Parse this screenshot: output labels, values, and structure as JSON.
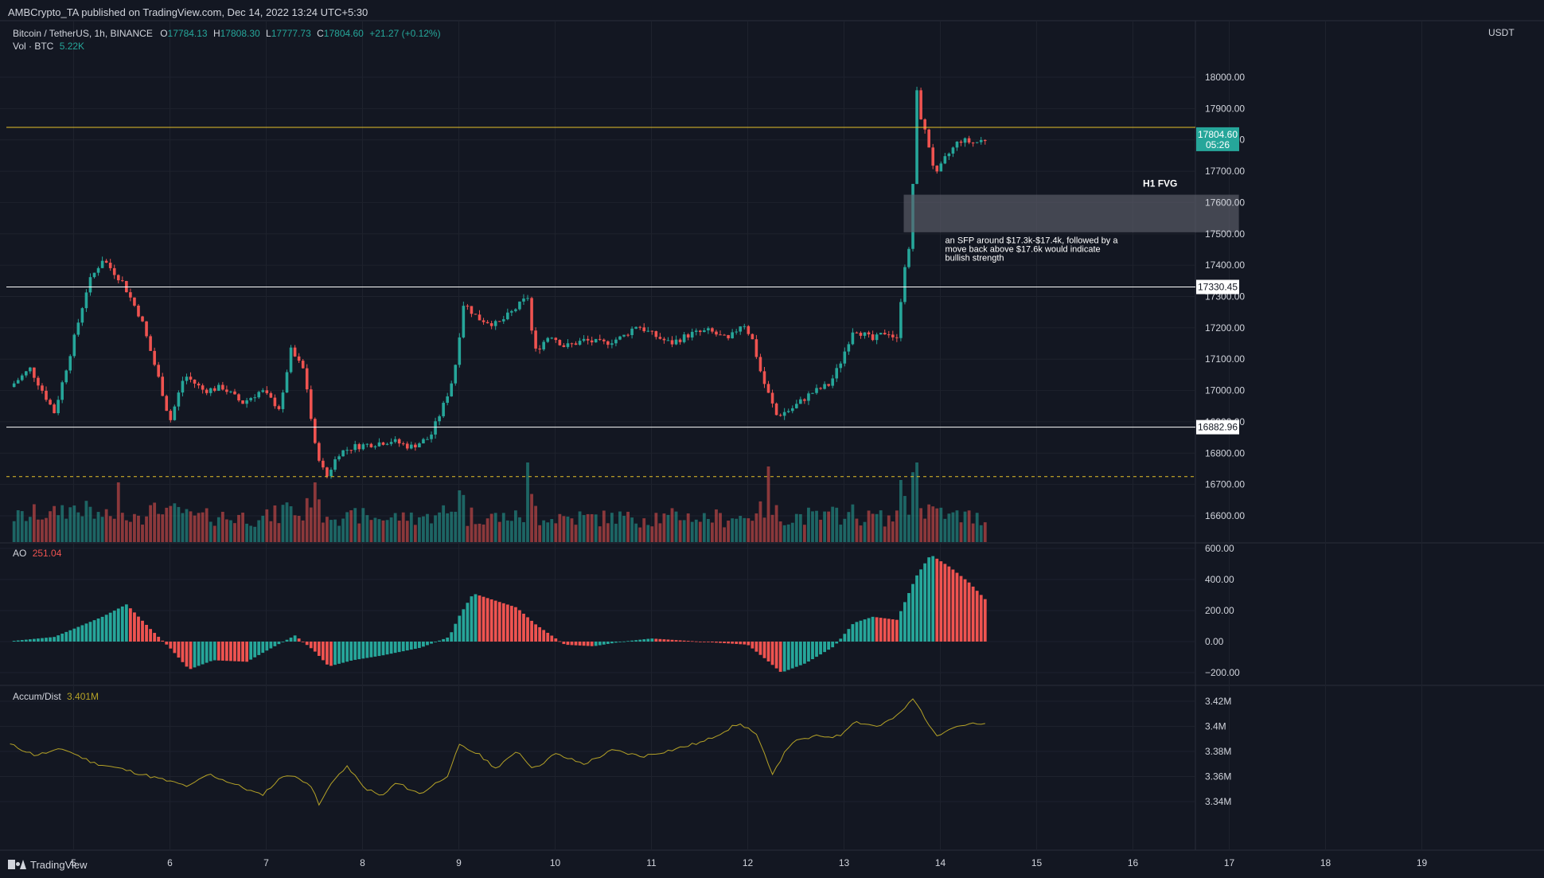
{
  "header": {
    "publisher": "AMBCrypto_TA published on TradingView.com, Dec 14, 2022 13:24 UTC+5:30",
    "symbol": "Bitcoin / TetherUS, 1h, BINANCE",
    "o_label": "O",
    "o": "17784.13",
    "h_label": "H",
    "h": "17808.30",
    "l_label": "L",
    "l": "17777.73",
    "c_label": "C",
    "c": "17804.60",
    "change": "+21.27 (+0.12%)",
    "vol_label": "Vol · BTC",
    "vol": "5.22K",
    "currency": "USDT"
  },
  "colors": {
    "background": "#131722",
    "up": "#26a69a",
    "down": "#ef5350",
    "resistance": "#e6c229",
    "support": "#ffffff",
    "fvg": "#5d606b",
    "ad_line": "#b5a227"
  },
  "footer": {
    "brand": "TradingView",
    "logo": "tradingview-logo-icon"
  },
  "chart_data": [
    {
      "type": "candlestick",
      "name": "Bitcoin / TetherUS, 1h, BINANCE",
      "x_ticks": [
        "5",
        "6",
        "7",
        "8",
        "9",
        "10",
        "11",
        "12",
        "13",
        "14",
        "15",
        "16",
        "17",
        "18",
        "19"
      ],
      "y_ticks": [
        16600,
        16700,
        16800,
        16900,
        17000,
        17100,
        17200,
        17300,
        17400,
        17500,
        17600,
        17700,
        17800,
        17900,
        18000
      ],
      "ylim": [
        16550,
        18100
      ],
      "grid": true,
      "last_price": {
        "value": "17804.60",
        "countdown": "05:26"
      },
      "levels": [
        {
          "kind": "resistance",
          "value": 17840
        },
        {
          "kind": "support",
          "value": 17330.45,
          "label": "17330.45"
        },
        {
          "kind": "support",
          "value": 16882.96,
          "label": "16882.96"
        },
        {
          "kind": "dashed",
          "value": 16725
        }
      ],
      "fvg_zone": {
        "label": "H1 FVG",
        "low": 17505,
        "high": 17625,
        "x_start": 13.62,
        "x_end": 17.1
      },
      "annotation": {
        "lines": [
          "an SFP around $17.3k-$17.4k, followed by a",
          "move back above $17.6k would indicate",
          "bullish strength"
        ],
        "x": 14.05,
        "y": 17470
      },
      "anchors": [
        [
          4.3,
          17000
        ],
        [
          4.55,
          17070
        ],
        [
          4.8,
          16930
        ],
        [
          5.0,
          17160
        ],
        [
          5.15,
          17340
        ],
        [
          5.3,
          17420
        ],
        [
          5.5,
          17350
        ],
        [
          5.7,
          17230
        ],
        [
          5.9,
          17020
        ],
        [
          6.0,
          16900
        ],
        [
          6.15,
          17050
        ],
        [
          6.35,
          17000
        ],
        [
          6.55,
          17010
        ],
        [
          6.75,
          16960
        ],
        [
          6.95,
          17000
        ],
        [
          7.15,
          16940
        ],
        [
          7.25,
          17130
        ],
        [
          7.4,
          17060
        ],
        [
          7.5,
          16830
        ],
        [
          7.62,
          16720
        ],
        [
          7.75,
          16800
        ],
        [
          7.9,
          16820
        ],
        [
          8.1,
          16830
        ],
        [
          8.3,
          16840
        ],
        [
          8.5,
          16820
        ],
        [
          8.7,
          16850
        ],
        [
          8.85,
          16960
        ],
        [
          8.95,
          17050
        ],
        [
          9.05,
          17280
        ],
        [
          9.2,
          17230
        ],
        [
          9.4,
          17210
        ],
        [
          9.55,
          17250
        ],
        [
          9.72,
          17300
        ],
        [
          9.78,
          17120
        ],
        [
          9.95,
          17180
        ],
        [
          10.1,
          17140
        ],
        [
          10.3,
          17160
        ],
        [
          10.5,
          17150
        ],
        [
          10.7,
          17170
        ],
        [
          10.85,
          17210
        ],
        [
          11.0,
          17180
        ],
        [
          11.2,
          17150
        ],
        [
          11.4,
          17180
        ],
        [
          11.6,
          17190
        ],
        [
          11.8,
          17160
        ],
        [
          11.95,
          17220
        ],
        [
          12.05,
          17160
        ],
        [
          12.15,
          17040
        ],
        [
          12.3,
          16920
        ],
        [
          12.45,
          16940
        ],
        [
          12.65,
          16990
        ],
        [
          12.85,
          17020
        ],
        [
          12.95,
          17080
        ],
        [
          13.1,
          17200
        ],
        [
          13.3,
          17160
        ],
        [
          13.45,
          17190
        ],
        [
          13.55,
          17160
        ],
        [
          13.62,
          17390
        ],
        [
          13.7,
          17470
        ],
        [
          13.74,
          17980
        ],
        [
          13.8,
          17870
        ],
        [
          13.9,
          17760
        ],
        [
          13.95,
          17680
        ],
        [
          14.05,
          17740
        ],
        [
          14.2,
          17800
        ],
        [
          14.35,
          17790
        ],
        [
          14.5,
          17805
        ]
      ],
      "volume_series": {
        "name": "Vol · BTC",
        "last": "5.22K",
        "spikes": [
          [
            5.45,
            0.75
          ],
          [
            7.5,
            0.75
          ],
          [
            9.0,
            0.65
          ],
          [
            9.72,
            1.0
          ],
          [
            12.2,
            0.95
          ],
          [
            13.6,
            0.78
          ],
          [
            13.75,
            1.0
          ]
        ]
      }
    },
    {
      "type": "histogram",
      "name": "AO",
      "last": "251.04",
      "y_ticks": [
        600,
        400,
        200,
        0,
        -200
      ],
      "ylim": [
        -260,
        610
      ],
      "anchors": [
        [
          4.3,
          0
        ],
        [
          4.8,
          30
        ],
        [
          5.3,
          160
        ],
        [
          5.55,
          240
        ],
        [
          5.8,
          80
        ],
        [
          6.0,
          -40
        ],
        [
          6.2,
          -180
        ],
        [
          6.45,
          -120
        ],
        [
          6.8,
          -130
        ],
        [
          7.0,
          -60
        ],
        [
          7.3,
          40
        ],
        [
          7.5,
          -60
        ],
        [
          7.65,
          -160
        ],
        [
          7.9,
          -120
        ],
        [
          8.2,
          -90
        ],
        [
          8.6,
          -40
        ],
        [
          8.9,
          30
        ],
        [
          9.0,
          160
        ],
        [
          9.15,
          310
        ],
        [
          9.3,
          280
        ],
        [
          9.6,
          220
        ],
        [
          9.8,
          110
        ],
        [
          10.1,
          -20
        ],
        [
          10.4,
          -30
        ],
        [
          10.7,
          0
        ],
        [
          11.0,
          20
        ],
        [
          11.5,
          0
        ],
        [
          12.0,
          -20
        ],
        [
          12.2,
          -120
        ],
        [
          12.35,
          -200
        ],
        [
          12.6,
          -140
        ],
        [
          12.9,
          -30
        ],
        [
          13.1,
          120
        ],
        [
          13.3,
          160
        ],
        [
          13.55,
          140
        ],
        [
          13.75,
          420
        ],
        [
          13.9,
          560
        ],
        [
          14.1,
          480
        ],
        [
          14.3,
          380
        ],
        [
          14.5,
          251
        ]
      ]
    },
    {
      "type": "line",
      "name": "Accum/Dist",
      "last": "3.401M",
      "y_ticks": [
        "3.42M",
        "3.4M",
        "3.38M",
        "3.36M",
        "3.34M"
      ],
      "y_values": [
        3.42,
        3.4,
        3.38,
        3.36,
        3.34
      ],
      "ylim": [
        3.328,
        3.428
      ],
      "anchors": [
        [
          4.3,
          3.387
        ],
        [
          4.6,
          3.377
        ],
        [
          4.9,
          3.382
        ],
        [
          5.2,
          3.371
        ],
        [
          5.5,
          3.366
        ],
        [
          5.9,
          3.358
        ],
        [
          6.2,
          3.352
        ],
        [
          6.4,
          3.362
        ],
        [
          6.7,
          3.353
        ],
        [
          6.95,
          3.345
        ],
        [
          7.2,
          3.362
        ],
        [
          7.45,
          3.355
        ],
        [
          7.55,
          3.337
        ],
        [
          7.7,
          3.358
        ],
        [
          7.85,
          3.368
        ],
        [
          8.0,
          3.352
        ],
        [
          8.2,
          3.344
        ],
        [
          8.35,
          3.355
        ],
        [
          8.6,
          3.346
        ],
        [
          8.9,
          3.362
        ],
        [
          9.0,
          3.385
        ],
        [
          9.2,
          3.378
        ],
        [
          9.4,
          3.366
        ],
        [
          9.6,
          3.381
        ],
        [
          9.78,
          3.366
        ],
        [
          10.0,
          3.378
        ],
        [
          10.3,
          3.37
        ],
        [
          10.6,
          3.381
        ],
        [
          10.9,
          3.376
        ],
        [
          11.2,
          3.381
        ],
        [
          11.55,
          3.388
        ],
        [
          11.9,
          3.402
        ],
        [
          12.0,
          3.399
        ],
        [
          12.1,
          3.392
        ],
        [
          12.25,
          3.362
        ],
        [
          12.45,
          3.387
        ],
        [
          12.7,
          3.392
        ],
        [
          12.95,
          3.392
        ],
        [
          13.1,
          3.404
        ],
        [
          13.35,
          3.4
        ],
        [
          13.55,
          3.408
        ],
        [
          13.72,
          3.422
        ],
        [
          13.85,
          3.406
        ],
        [
          13.95,
          3.392
        ],
        [
          14.1,
          3.399
        ],
        [
          14.3,
          3.402
        ],
        [
          14.5,
          3.401
        ]
      ]
    }
  ]
}
